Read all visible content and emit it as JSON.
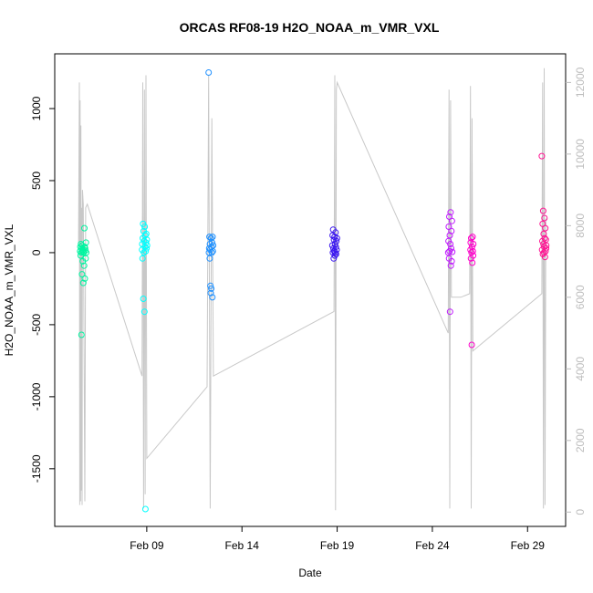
{
  "chart_data": {
    "type": "scatter",
    "title": "ORCAS RF08-19 H2O_NOAA_m_VMR_VXL",
    "xlabel": "Date",
    "ylabel": "H2O_NOAA_m_VMR_VXL",
    "x_ticks": [
      "Feb 09",
      "Feb 14",
      "Feb 19",
      "Feb 24",
      "Feb 29"
    ],
    "y_ticks": [
      -1500,
      -1000,
      -500,
      0,
      500,
      1000
    ],
    "y2_ticks": [
      0,
      2000,
      4000,
      6000,
      8000,
      10000,
      12000
    ],
    "xlim": [
      "2016-02-04T04:00",
      "2016-03-02T00:00"
    ],
    "ylim": [
      -1900,
      1380
    ],
    "y2lim": [
      -400,
      12800
    ],
    "grid": false,
    "colors": {
      "scatter_outline": "#000000",
      "altitude_line": "#c8c8c8",
      "right_axis": "#bdbdbd"
    },
    "series": [
      {
        "color": "#00f5a0",
        "x": [
          "2016-02-05T12:00",
          "2016-02-05T12:20",
          "2016-02-05T12:40",
          "2016-02-05T13:00",
          "2016-02-05T13:20",
          "2016-02-05T13:40",
          "2016-02-05T14:00",
          "2016-02-05T14:20",
          "2016-02-05T14:40",
          "2016-02-05T15:00",
          "2016-02-05T15:20",
          "2016-02-05T15:40",
          "2016-02-05T16:00",
          "2016-02-05T16:20",
          "2016-02-05T16:40",
          "2016-02-05T17:00",
          "2016-02-05T17:20",
          "2016-02-05T17:40",
          "2016-02-05T18:00",
          "2016-02-05T18:20",
          "2016-02-05T18:40",
          "2016-02-05T19:00",
          "2016-02-05T19:20",
          "2016-02-05T19:40"
        ],
        "y": [
          10,
          40,
          -20,
          60,
          0,
          -570,
          30,
          -150,
          50,
          10,
          -60,
          20,
          -210,
          0,
          5,
          -90,
          170,
          40,
          -180,
          30,
          15,
          -40,
          70,
          0
        ]
      },
      {
        "color": "#00ffff",
        "x": [
          "2016-02-08T18:00",
          "2016-02-08T18:20",
          "2016-02-08T18:40",
          "2016-02-08T19:00",
          "2016-02-08T19:20",
          "2016-02-08T19:40",
          "2016-02-08T20:00",
          "2016-02-08T20:20",
          "2016-02-08T20:40",
          "2016-02-08T21:00",
          "2016-02-08T21:20",
          "2016-02-08T21:40",
          "2016-02-08T22:00",
          "2016-02-08T22:20",
          "2016-02-08T22:40",
          "2016-02-08T23:00",
          "2016-02-08T23:20",
          "2016-02-08T23:40",
          "2016-02-09T00:00",
          "2016-02-09T00:20"
        ],
        "y": [
          20,
          60,
          -40,
          100,
          200,
          -320,
          150,
          0,
          80,
          -410,
          180,
          40,
          120,
          -1780,
          10,
          70,
          130,
          30,
          90,
          50
        ]
      },
      {
        "color": "#1e90ff",
        "x": [
          "2016-02-12T06:00",
          "2016-02-12T06:20",
          "2016-02-12T06:40",
          "2016-02-12T07:00",
          "2016-02-12T07:20",
          "2016-02-12T07:40",
          "2016-02-12T08:00",
          "2016-02-12T08:20",
          "2016-02-12T08:40",
          "2016-02-12T09:00",
          "2016-02-12T09:20",
          "2016-02-12T09:40",
          "2016-02-12T10:00",
          "2016-02-12T10:20",
          "2016-02-12T10:40",
          "2016-02-12T11:00",
          "2016-02-12T11:20",
          "2016-02-12T11:40"
        ],
        "y": [
          1250,
          0,
          30,
          110,
          -40,
          60,
          20,
          -230,
          -280,
          100,
          -250,
          40,
          0,
          70,
          -310,
          110,
          10,
          50
        ]
      },
      {
        "color": "#3a16f0",
        "x": [
          "2016-02-18T18:00",
          "2016-02-18T18:20",
          "2016-02-18T18:40",
          "2016-02-18T19:00",
          "2016-02-18T19:20",
          "2016-02-18T19:40",
          "2016-02-18T20:00",
          "2016-02-18T20:20",
          "2016-02-18T20:40",
          "2016-02-18T21:00",
          "2016-02-18T21:20",
          "2016-02-18T21:40",
          "2016-02-18T22:00",
          "2016-02-18T22:20",
          "2016-02-18T22:40",
          "2016-02-18T23:00",
          "2016-02-18T23:20",
          "2016-02-18T23:40"
        ],
        "y": [
          50,
          120,
          0,
          160,
          30,
          -40,
          90,
          10,
          110,
          -20,
          60,
          0,
          140,
          40,
          -10,
          80,
          20,
          100
        ]
      },
      {
        "color": "#c019ff",
        "x": [
          "2016-02-24T20:00",
          "2016-02-24T20:20",
          "2016-02-24T20:40",
          "2016-02-24T21:00",
          "2016-02-24T21:20",
          "2016-02-24T21:40",
          "2016-02-24T22:00",
          "2016-02-24T22:20",
          "2016-02-24T22:40",
          "2016-02-24T23:00",
          "2016-02-24T23:20",
          "2016-02-24T23:40",
          "2016-02-25T00:00",
          "2016-02-25T00:20",
          "2016-02-25T00:40",
          "2016-02-25T01:00"
        ],
        "y": [
          0,
          80,
          180,
          -40,
          250,
          10,
          120,
          -410,
          60,
          280,
          -90,
          30,
          150,
          -60,
          220,
          5
        ]
      },
      {
        "color": "#ff00cc",
        "x": [
          "2016-02-26T00:00",
          "2016-02-26T00:20",
          "2016-02-26T00:40",
          "2016-02-26T01:00",
          "2016-02-26T01:20",
          "2016-02-26T01:40",
          "2016-02-26T02:00",
          "2016-02-26T02:20",
          "2016-02-26T02:40",
          "2016-02-26T03:00",
          "2016-02-26T03:20",
          "2016-02-26T03:40"
        ],
        "y": [
          20,
          70,
          -40,
          100,
          0,
          -640,
          40,
          -70,
          110,
          10,
          -20,
          60
        ]
      },
      {
        "color": "#ff1493",
        "x": [
          "2016-02-29T18:00",
          "2016-02-29T18:20",
          "2016-02-29T18:40",
          "2016-02-29T19:00",
          "2016-02-29T19:20",
          "2016-02-29T19:40",
          "2016-02-29T20:00",
          "2016-02-29T20:20",
          "2016-02-29T20:40",
          "2016-02-29T21:00",
          "2016-02-29T21:20",
          "2016-02-29T21:40",
          "2016-02-29T22:00",
          "2016-02-29T22:20",
          "2016-02-29T22:40",
          "2016-02-29T23:00",
          "2016-02-29T23:20",
          "2016-02-29T23:40"
        ],
        "y": [
          670,
          20,
          80,
          200,
          -10,
          290,
          60,
          130,
          0,
          40,
          240,
          100,
          -30,
          170,
          10,
          90,
          30,
          50
        ]
      }
    ],
    "altitude_series": {
      "axis": "right",
      "color": "#c8c8c8",
      "x": [
        "2016-02-05T10:00",
        "2016-02-05T11:00",
        "2016-02-05T11:30",
        "2016-02-05T12:00",
        "2016-02-05T12:30",
        "2016-02-05T13:00",
        "2016-02-05T13:30",
        "2016-02-05T14:00",
        "2016-02-05T14:30",
        "2016-02-05T15:00",
        "2016-02-05T16:00",
        "2016-02-05T18:00",
        "2016-02-05T19:00",
        "2016-02-05T21:00",
        "2016-02-08T18:00",
        "2016-02-08T19:00",
        "2016-02-08T20:00",
        "2016-02-08T21:00",
        "2016-02-08T22:00",
        "2016-02-08T23:00",
        "2016-02-09T00:00",
        "2016-02-12T04:00",
        "2016-02-12T06:00",
        "2016-02-12T08:00",
        "2016-02-12T10:00",
        "2016-02-12T12:00",
        "2016-02-18T20:00",
        "2016-02-18T21:00",
        "2016-02-18T22:00",
        "2016-02-18T23:00",
        "2016-02-19T00:00",
        "2016-02-24T20:00",
        "2016-02-24T21:00",
        "2016-02-24T22:00",
        "2016-02-24T23:00",
        "2016-02-25T00:00",
        "2016-02-25T12:00",
        "2016-02-25T23:00",
        "2016-02-26T00:00",
        "2016-02-26T01:00",
        "2016-02-26T02:00",
        "2016-02-26T03:00",
        "2016-02-29T18:00",
        "2016-02-29T19:00",
        "2016-02-29T20:00",
        "2016-02-29T21:00",
        "2016-02-29T22:00",
        "2016-02-29T23:00"
      ],
      "y": [
        7500,
        12000,
        200,
        11500,
        300,
        10800,
        600,
        8500,
        200,
        9000,
        8600,
        300,
        8500,
        8600,
        3800,
        12000,
        100,
        11800,
        500,
        12200,
        1500,
        3500,
        12200,
        100,
        11000,
        3800,
        5600,
        12200,
        50,
        11800,
        12000,
        5000,
        11800,
        100,
        11500,
        6000,
        6000,
        6100,
        11900,
        100,
        11000,
        4500,
        6100,
        12000,
        100,
        12400,
        200,
        8200
      ]
    }
  }
}
